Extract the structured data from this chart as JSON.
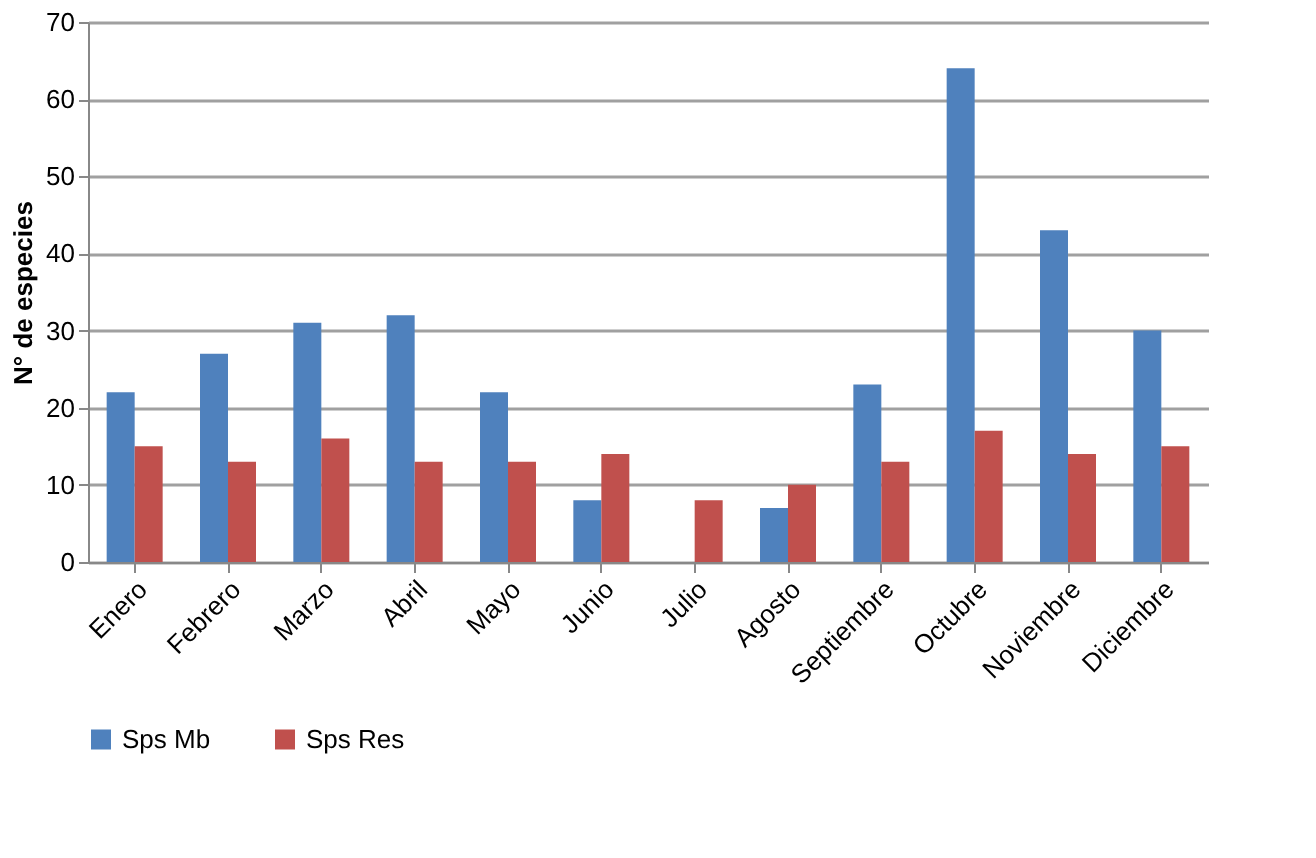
{
  "chart_data": {
    "type": "bar",
    "ylabel": "N° de especies",
    "categories": [
      "Enero",
      "Febrero",
      "Marzo",
      "Abril",
      "Mayo",
      "Junio",
      "Julio",
      "Agosto",
      "Septiembre",
      "Octubre",
      "Noviembre",
      "Diciembre"
    ],
    "series": [
      {
        "name": "Sps Mb",
        "color": "#4f81bd",
        "values": [
          22,
          27,
          31,
          32,
          22,
          8,
          0,
          7,
          23,
          64,
          43,
          30
        ]
      },
      {
        "name": "Sps Res",
        "color": "#c0504d",
        "values": [
          15,
          13,
          16,
          13,
          13,
          14,
          8,
          10,
          13,
          17,
          14,
          15
        ]
      }
    ],
    "ylim": [
      0,
      70
    ],
    "yticks": [
      0,
      10,
      20,
      30,
      40,
      50,
      60,
      70
    ],
    "grid": "y",
    "legend": "bottom"
  }
}
